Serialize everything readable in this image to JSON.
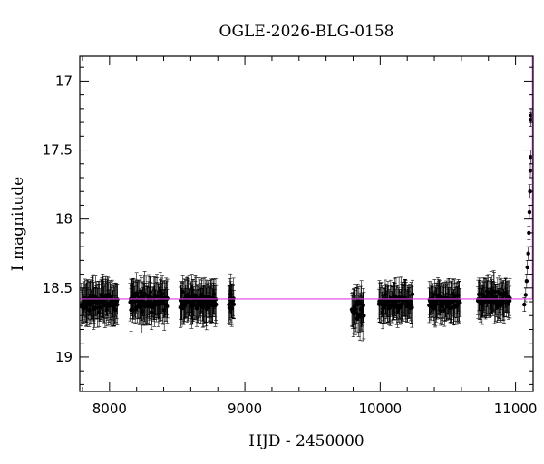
{
  "chart_data": {
    "type": "scatter",
    "title": "OGLE-2026-BLG-0158",
    "xlabel": "HJD - 2450000",
    "ylabel": "I magnitude",
    "xlim": [
      7780,
      11130
    ],
    "ylim": [
      19.25,
      16.82
    ],
    "y_inverted": true,
    "grid": false,
    "x_ticks": [
      8000,
      9000,
      10000,
      11000
    ],
    "y_ticks": [
      17,
      17.5,
      18,
      18.5,
      19
    ],
    "baseline_magnitude": 18.58,
    "peak_time": 11125,
    "series": [
      {
        "style": "points with error bars",
        "color": "#000000",
        "seasons": [
          {
            "x_range": [
              7790,
              8060
            ],
            "y_median": 18.6,
            "y_scatter": 0.1,
            "error": 0.13
          },
          {
            "x_range": [
              8150,
              8430
            ],
            "y_median": 18.6,
            "y_scatter": 0.1,
            "error": 0.13
          },
          {
            "x_range": [
              8520,
              8790
            ],
            "y_median": 18.6,
            "y_scatter": 0.1,
            "error": 0.13
          },
          {
            "x_range": [
              8880,
              8920
            ],
            "y_median": 18.6,
            "y_scatter": 0.08,
            "error": 0.12
          },
          {
            "x_range": [
              9790,
              9880
            ],
            "y_median": 18.65,
            "y_scatter": 0.12,
            "error": 0.14
          },
          {
            "x_range": [
              9990,
              10240
            ],
            "y_median": 18.6,
            "y_scatter": 0.08,
            "error": 0.12
          },
          {
            "x_range": [
              10360,
              10590
            ],
            "y_median": 18.6,
            "y_scatter": 0.08,
            "error": 0.12
          },
          {
            "x_range": [
              10720,
              10960
            ],
            "y_median": 18.58,
            "y_scatter": 0.08,
            "error": 0.12
          }
        ],
        "rise": [
          {
            "x": 11065,
            "y": 18.62
          },
          {
            "x": 11075,
            "y": 18.55
          },
          {
            "x": 11082,
            "y": 18.45
          },
          {
            "x": 11088,
            "y": 18.35
          },
          {
            "x": 11094,
            "y": 18.25
          },
          {
            "x": 11099,
            "y": 18.1
          },
          {
            "x": 11103,
            "y": 17.95
          },
          {
            "x": 11107,
            "y": 17.8
          },
          {
            "x": 11110,
            "y": 17.65
          },
          {
            "x": 11112,
            "y": 17.55
          },
          {
            "x": 11114,
            "y": 17.28
          },
          {
            "x": 11116,
            "y": 17.25
          }
        ]
      }
    ],
    "model_color": "#e040e0"
  }
}
